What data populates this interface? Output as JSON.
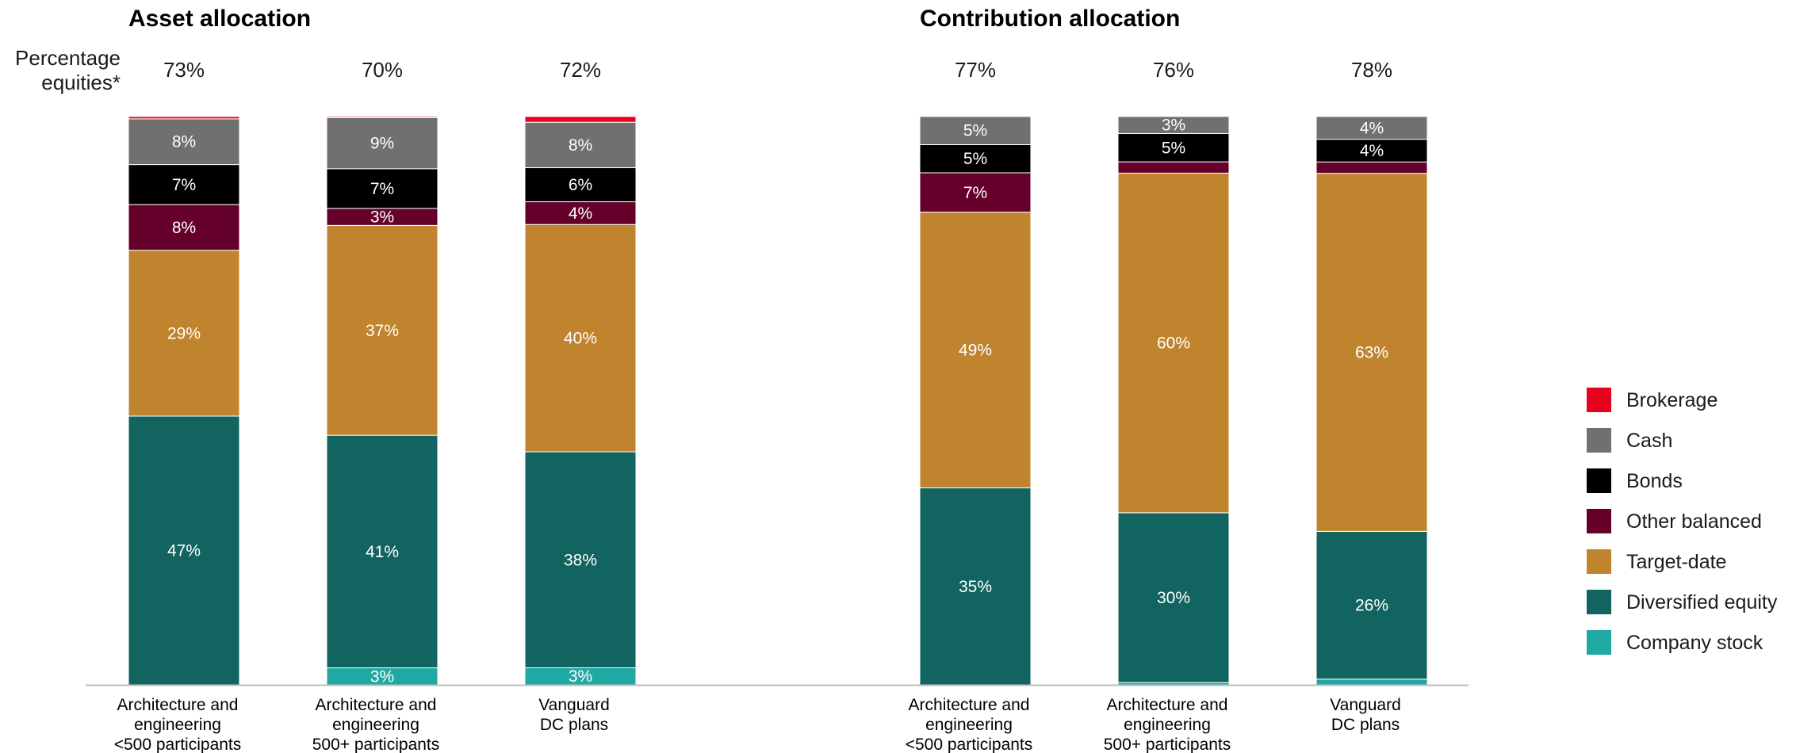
{
  "chart_data": {
    "type": "bar",
    "stacked": true,
    "percentage_label": [
      "Percentage",
      "equities*"
    ],
    "legend_placement": "right",
    "series_order": [
      "Company stock",
      "Diversified equity",
      "Target-date",
      "Other balanced",
      "Bonds",
      "Cash",
      "Brokerage"
    ],
    "legend": [
      {
        "name": "Brokerage",
        "color": "#e8001c"
      },
      {
        "name": "Cash",
        "color": "#707070"
      },
      {
        "name": "Bonds",
        "color": "#000000"
      },
      {
        "name": "Other balanced",
        "color": "#65002b"
      },
      {
        "name": "Target-date",
        "color": "#c0842e"
      },
      {
        "name": "Diversified equity",
        "color": "#126460"
      },
      {
        "name": "Company stock",
        "color": "#20a8a2"
      }
    ],
    "panels": [
      {
        "title": "Asset allocation",
        "categories": [
          {
            "label": [
              "Architecture and",
              "engineering",
              "<500 participants"
            ],
            "equities_pct": "73%",
            "values": {
              "Company stock": 0,
              "Diversified equity": 47,
              "Target-date": 29,
              "Other balanced": 8,
              "Bonds": 7,
              "Cash": 8,
              "Brokerage": 0.4
            },
            "labels": {
              "Diversified equity": "47%",
              "Target-date": "29%",
              "Other balanced": "8%",
              "Bonds": "7%",
              "Cash": "8%"
            }
          },
          {
            "label": [
              "Architecture and",
              "engineering",
              "500+ participants"
            ],
            "equities_pct": "70%",
            "values": {
              "Company stock": 3,
              "Diversified equity": 41,
              "Target-date": 37,
              "Other balanced": 3,
              "Bonds": 7,
              "Cash": 9,
              "Brokerage": 0.2
            },
            "labels": {
              "Company stock": "3%",
              "Diversified equity": "41%",
              "Target-date": "37%",
              "Other balanced": "3%",
              "Bonds": "7%",
              "Cash": "9%"
            }
          },
          {
            "label": [
              "Vanguard",
              "DC plans"
            ],
            "equities_pct": "72%",
            "values": {
              "Company stock": 3,
              "Diversified equity": 38,
              "Target-date": 40,
              "Other balanced": 4,
              "Bonds": 6,
              "Cash": 8,
              "Brokerage": 1
            },
            "labels": {
              "Company stock": "3%",
              "Diversified equity": "38%",
              "Target-date": "40%",
              "Other balanced": "4%",
              "Bonds": "6%",
              "Cash": "8%"
            }
          }
        ]
      },
      {
        "title": "Contribution allocation",
        "categories": [
          {
            "label": [
              "Architecture and",
              "engineering",
              "<500 participants"
            ],
            "equities_pct": "77%",
            "values": {
              "Company stock": 0,
              "Diversified equity": 35,
              "Target-date": 49,
              "Other balanced": 7,
              "Bonds": 5,
              "Cash": 5,
              "Brokerage": 0
            },
            "labels": {
              "Diversified equity": "35%",
              "Target-date": "49%",
              "Other balanced": "7%",
              "Bonds": "5%",
              "Cash": "5%"
            }
          },
          {
            "label": [
              "Architecture and",
              "engineering",
              "500+ participants"
            ],
            "equities_pct": "76%",
            "values": {
              "Company stock": 0.4,
              "Diversified equity": 30,
              "Target-date": 60,
              "Other balanced": 2,
              "Bonds": 5,
              "Cash": 3,
              "Brokerage": 0
            },
            "labels": {
              "Diversified equity": "30%",
              "Target-date": "60%",
              "Bonds": "5%",
              "Cash": "3%"
            }
          },
          {
            "label": [
              "Vanguard",
              "DC plans"
            ],
            "equities_pct": "78%",
            "values": {
              "Company stock": 1,
              "Diversified equity": 26,
              "Target-date": 63,
              "Other balanced": 2,
              "Bonds": 4,
              "Cash": 4,
              "Brokerage": 0
            },
            "labels": {
              "Diversified equity": "26%",
              "Target-date": "63%",
              "Bonds": "4%",
              "Cash": "4%"
            }
          }
        ]
      }
    ]
  }
}
